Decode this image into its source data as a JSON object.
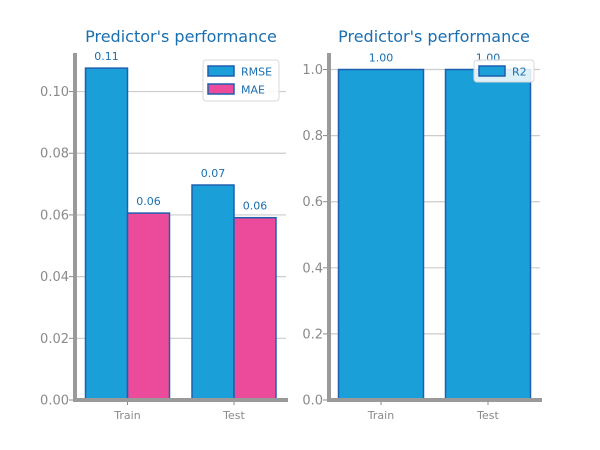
{
  "chart_data": [
    {
      "type": "bar",
      "title": "Predictor's performance",
      "categories": [
        "Train",
        "Test"
      ],
      "series": [
        {
          "name": "RMSE",
          "values": [
            0.1076,
            0.0697
          ],
          "labels": [
            "0.11",
            "0.07"
          ],
          "color": "#1b9fd8"
        },
        {
          "name": "MAE",
          "values": [
            0.0606,
            0.0591
          ],
          "labels": [
            "0.06",
            "0.06"
          ],
          "color": "#ec4b9b"
        }
      ],
      "ylim": [
        0,
        0.1125
      ],
      "yticks": [
        0.0,
        0.02,
        0.04,
        0.06,
        0.08,
        0.1
      ],
      "ytick_labels": [
        "0.00",
        "0.02",
        "0.04",
        "0.06",
        "0.08",
        "0.10"
      ],
      "xlabel": "",
      "ylabel": "",
      "grid": true,
      "legend": "top-right"
    },
    {
      "type": "bar",
      "title": "Predictor's performance",
      "categories": [
        "Train",
        "Test"
      ],
      "series": [
        {
          "name": "R2",
          "values": [
            1.0,
            1.0
          ],
          "labels": [
            "1.00",
            "1.00"
          ],
          "color": "#1b9fd8"
        }
      ],
      "ylim": [
        0,
        1.05
      ],
      "yticks": [
        0.0,
        0.2,
        0.4,
        0.6,
        0.8,
        1.0
      ],
      "ytick_labels": [
        "0.0",
        "0.2",
        "0.4",
        "0.6",
        "0.8",
        "1.0"
      ],
      "xlabel": "",
      "ylabel": "",
      "grid": true,
      "legend": "top-right"
    }
  ],
  "colors": {
    "edge": "#1f5fb0",
    "text": "#1a6fb0",
    "tick": "#8a8a8a",
    "spine": "#9a9a9a",
    "grid": "#cccccc"
  }
}
